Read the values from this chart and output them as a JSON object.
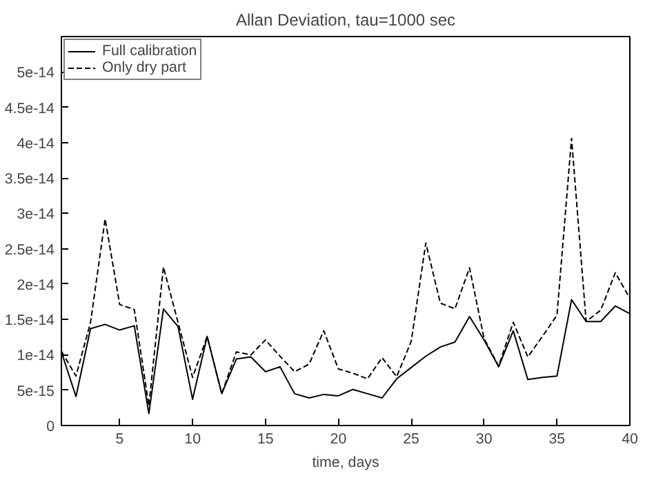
{
  "chart_data": {
    "type": "line",
    "title": "Allan Deviation, tau=1000 sec",
    "xlabel": "time, days",
    "x": [
      1,
      2,
      3,
      4,
      5,
      6,
      7,
      8,
      9,
      10,
      11,
      12,
      13,
      14,
      15,
      16,
      17,
      18,
      19,
      20,
      21,
      22,
      23,
      24,
      25,
      26,
      27,
      28,
      29,
      30,
      31,
      32,
      33,
      34,
      35,
      36,
      37,
      38,
      39,
      40
    ],
    "series": [
      {
        "name": "Full calibration",
        "color": "#000000",
        "line_style": "solid",
        "values": [
          1.04e-14,
          4.1e-15,
          1.37e-14,
          1.43e-14,
          1.35e-14,
          1.41e-14,
          1.7e-15,
          1.65e-14,
          1.4e-14,
          3.7e-15,
          1.26e-14,
          4.5e-15,
          9.4e-15,
          9.7e-15,
          7.6e-15,
          8.3e-15,
          4.5e-15,
          3.9e-15,
          4.4e-15,
          4.2e-15,
          5.1e-15,
          4.5e-15,
          3.9e-15,
          6.6e-15,
          8.2e-15,
          9.8e-15,
          1.11e-14,
          1.18e-14,
          1.54e-14,
          1.21e-14,
          8.3e-15,
          1.34e-14,
          6.5e-15,
          6.8e-15,
          7e-15,
          1.78e-14,
          1.47e-14,
          1.47e-14,
          1.69e-14,
          1.58e-14
        ]
      },
      {
        "name": "Only dry part",
        "color": "#000000",
        "line_style": "dashed",
        "values": [
          1.05e-14,
          7e-15,
          1.46e-14,
          2.92e-14,
          1.71e-14,
          1.64e-14,
          2.8e-15,
          2.24e-14,
          1.46e-14,
          6.8e-15,
          1.26e-14,
          4.5e-15,
          1.04e-14,
          1e-14,
          1.21e-14,
          9.8e-15,
          7.6e-15,
          8.7e-15,
          1.34e-14,
          8e-15,
          7.4e-15,
          6.6e-15,
          9.6e-15,
          6.9e-15,
          1.19e-14,
          2.58e-14,
          1.73e-14,
          1.65e-14,
          2.23e-14,
          1.23e-14,
          8.4e-15,
          1.46e-14,
          9.7e-15,
          1.26e-14,
          1.56e-14,
          4.06e-14,
          1.47e-14,
          1.63e-14,
          2.16e-14,
          1.8e-14
        ]
      }
    ],
    "xlim": [
      1,
      40
    ],
    "xticks": [
      5,
      10,
      15,
      20,
      25,
      30,
      35,
      40
    ],
    "ylim": [
      0,
      5.5e-14
    ],
    "yticks": [
      0,
      {
        "value": 5e-15,
        "label": "5e-15"
      },
      {
        "value": 1e-14,
        "label": "1e-14"
      },
      {
        "value": 1.5e-14,
        "label": "1.5e-14"
      },
      {
        "value": 2e-14,
        "label": "2e-14"
      },
      {
        "value": 2.5e-14,
        "label": "2.5e-14"
      },
      {
        "value": 3e-14,
        "label": "3e-14"
      },
      {
        "value": 3.5e-14,
        "label": "3.5e-14"
      },
      {
        "value": 4e-14,
        "label": "4e-14"
      },
      {
        "value": 4.5e-14,
        "label": "4.5e-14"
      },
      {
        "value": 5e-14,
        "label": "5e-14"
      }
    ],
    "grid": false,
    "legend": "top left",
    "marker": "none"
  }
}
